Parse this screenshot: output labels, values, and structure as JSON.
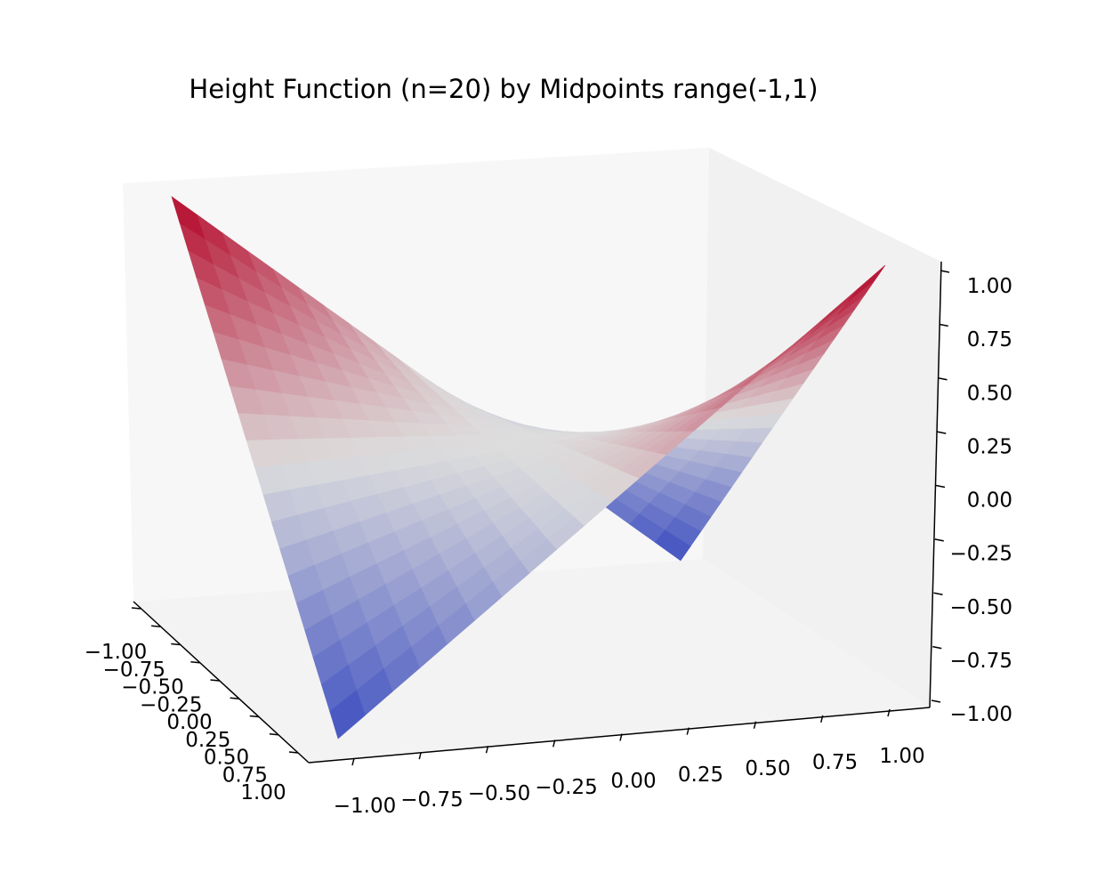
{
  "chart_data": {
    "type": "surface",
    "title": "Height Function (n=20) by Midpoints range(-1,1)",
    "function": "z = x * y",
    "n": 20,
    "colormap": [
      "#3b4cc0",
      "#dddddd",
      "#b40426"
    ],
    "x_ticks": [
      "−1.00",
      "−0.75",
      "−0.50",
      "−0.25",
      "0.00",
      "0.25",
      "0.50",
      "0.75",
      "1.00"
    ],
    "y_ticks": [
      "−1.00",
      "−0.75",
      "−0.50",
      "−0.25",
      "0.00",
      "0.25",
      "0.50",
      "0.75",
      "1.00"
    ],
    "z_ticks": [
      "−1.00",
      "−0.75",
      "−0.50",
      "−0.25",
      "0.00",
      "0.25",
      "0.50",
      "0.75",
      "1.00"
    ],
    "xlim": [
      -1,
      1
    ],
    "ylim": [
      -1,
      1
    ],
    "zlim": [
      -1,
      1
    ],
    "surface_corners": [
      {
        "x": -1,
        "y": -1,
        "z": 1
      },
      {
        "x": 1,
        "y": 1,
        "z": 1
      },
      {
        "x": 1,
        "y": -1,
        "z": -1
      },
      {
        "x": -1,
        "y": 1,
        "z": -1
      }
    ]
  }
}
